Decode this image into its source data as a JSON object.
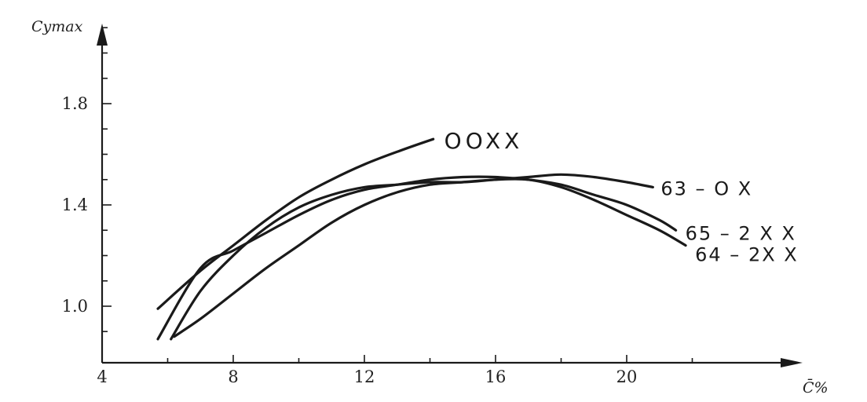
{
  "chart_data": {
    "type": "line",
    "title": "",
    "xlabel": "C̄%",
    "ylabel": "Cymax",
    "xlim": [
      4,
      24
    ],
    "ylim": [
      0.8,
      2.1
    ],
    "x_ticks": [
      4,
      8,
      12,
      16,
      20
    ],
    "y_ticks": [
      1.0,
      1.4,
      1.8
    ],
    "y_tick_labels": [
      "1.0",
      "1.4",
      "1.8"
    ],
    "grid": false,
    "legend": "none",
    "series": [
      {
        "name": "OOXX",
        "points": [
          [
            5.7,
            0.99
          ],
          [
            7,
            1.14
          ],
          [
            8,
            1.24
          ],
          [
            9,
            1.34
          ],
          [
            10,
            1.43
          ],
          [
            11,
            1.5
          ],
          [
            12,
            1.56
          ],
          [
            13,
            1.61
          ],
          [
            14.1,
            1.66
          ]
        ]
      },
      {
        "name": "63 – O X",
        "points": [
          [
            6.1,
            0.87
          ],
          [
            7,
            1.06
          ],
          [
            8,
            1.2
          ],
          [
            9,
            1.31
          ],
          [
            10,
            1.39
          ],
          [
            11,
            1.44
          ],
          [
            12,
            1.47
          ],
          [
            13,
            1.48
          ],
          [
            14,
            1.49
          ],
          [
            15,
            1.49
          ],
          [
            16,
            1.5
          ],
          [
            17,
            1.51
          ],
          [
            18,
            1.52
          ],
          [
            19,
            1.51
          ],
          [
            20,
            1.49
          ],
          [
            20.8,
            1.47
          ]
        ]
      },
      {
        "name": "65 – 2 X X",
        "points": [
          [
            5.7,
            0.87
          ],
          [
            7,
            1.15
          ],
          [
            8,
            1.22
          ],
          [
            9,
            1.29
          ],
          [
            10,
            1.36
          ],
          [
            11,
            1.42
          ],
          [
            12,
            1.46
          ],
          [
            13,
            1.48
          ],
          [
            14,
            1.5
          ],
          [
            15,
            1.51
          ],
          [
            16,
            1.51
          ],
          [
            17,
            1.5
          ],
          [
            18,
            1.48
          ],
          [
            19,
            1.44
          ],
          [
            20,
            1.4
          ],
          [
            21,
            1.34
          ],
          [
            21.5,
            1.3
          ]
        ]
      },
      {
        "name": "64 – 2X X",
        "points": [
          [
            6.2,
            0.88
          ],
          [
            7,
            0.95
          ],
          [
            8,
            1.05
          ],
          [
            9,
            1.15
          ],
          [
            10,
            1.24
          ],
          [
            11,
            1.33
          ],
          [
            12,
            1.4
          ],
          [
            13,
            1.45
          ],
          [
            14,
            1.48
          ],
          [
            15,
            1.49
          ],
          [
            16,
            1.5
          ],
          [
            17,
            1.5
          ],
          [
            18,
            1.47
          ],
          [
            19,
            1.42
          ],
          [
            20,
            1.36
          ],
          [
            21,
            1.3
          ],
          [
            21.8,
            1.24
          ]
        ]
      }
    ]
  }
}
